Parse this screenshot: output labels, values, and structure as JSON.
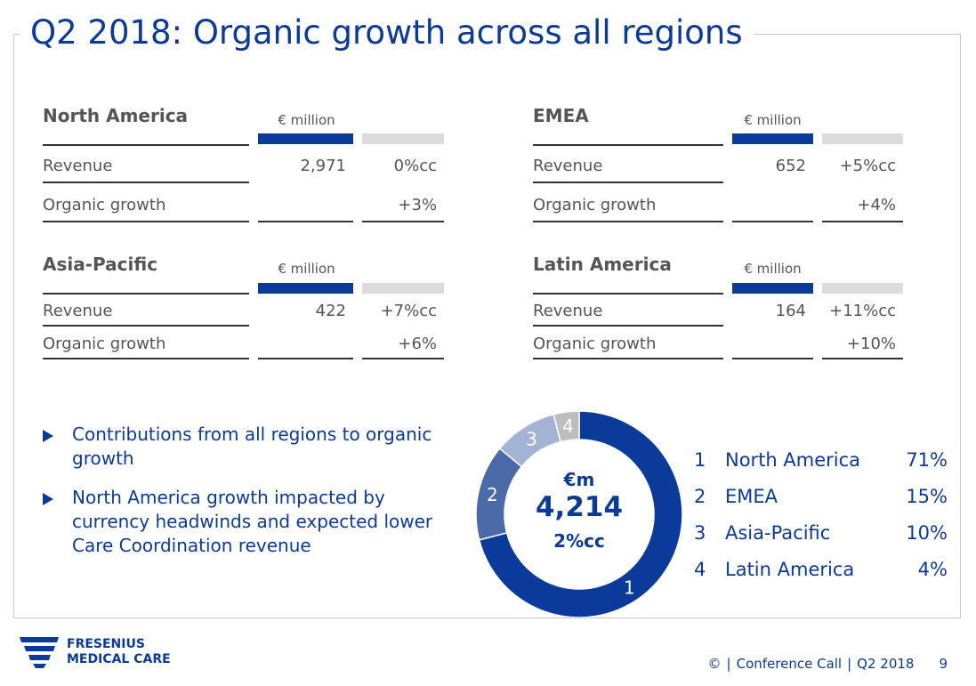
{
  "title": "Q2 2018: Organic growth across all regions",
  "regions": [
    {
      "name": "North America",
      "unit": "€ million",
      "revenue_label": "Revenue",
      "revenue": "2,971",
      "revenue_growth": "0%cc",
      "organic_label": "Organic growth",
      "organic": "+3%"
    },
    {
      "name": "EMEA",
      "unit": "€ million",
      "revenue_label": "Revenue",
      "revenue": "652",
      "revenue_growth": "+5%cc",
      "organic_label": "Organic growth",
      "organic": "+4%"
    },
    {
      "name": "Asia-Pacific",
      "unit": "€ million",
      "revenue_label": "Revenue",
      "revenue": "422",
      "revenue_growth": "+7%cc",
      "organic_label": "Organic growth",
      "organic": "+6%"
    },
    {
      "name": "Latin America",
      "unit": "€ million",
      "revenue_label": "Revenue",
      "revenue": "164",
      "revenue_growth": "+11%cc",
      "organic_label": "Organic growth",
      "organic": "+10%"
    }
  ],
  "bullets": [
    "Contributions from all regions to organic growth",
    "North America growth impacted by currency headwinds and expected lower Care Coordination revenue"
  ],
  "donut": {
    "center_unit": "€m",
    "center_value": "4,214",
    "center_growth": "2%cc",
    "segments": [
      {
        "num": "1",
        "name": "North America",
        "pct_label": "71%",
        "value": 71,
        "color": "#0a3a9a"
      },
      {
        "num": "2",
        "name": "EMEA",
        "pct_label": "15%",
        "value": 15,
        "color": "#4a6aa8"
      },
      {
        "num": "3",
        "name": "Asia-Pacific",
        "pct_label": "10%",
        "value": 10,
        "color": "#a3b3d3"
      },
      {
        "num": "4",
        "name": "Latin America",
        "pct_label": "4%",
        "value": 4,
        "color": "#bdbdbd"
      }
    ]
  },
  "logo": {
    "line1": "FRESENIUS",
    "line2": "MEDICAL CARE"
  },
  "footer": {
    "copyright": "©",
    "event": "Conference Call",
    "period": "Q2 2018",
    "page": "9"
  }
}
